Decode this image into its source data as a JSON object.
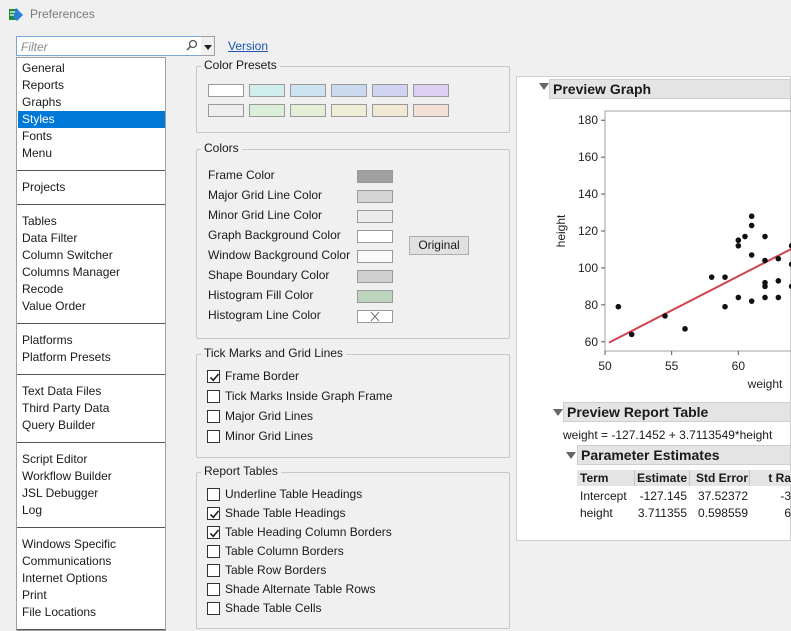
{
  "window": {
    "title": "Preferences"
  },
  "filter": {
    "placeholder": "Filter"
  },
  "version_link": "Version",
  "nav": {
    "groups": [
      [
        "General",
        "Reports",
        "Graphs",
        "Styles",
        "Fonts",
        "Menu"
      ],
      [
        "Projects"
      ],
      [
        "Tables",
        "Data Filter",
        "Column Switcher",
        "Columns Manager",
        "Recode",
        "Value Order"
      ],
      [
        "Platforms",
        "Platform Presets"
      ],
      [
        "Text Data Files",
        "Third Party Data",
        "Query Builder"
      ],
      [
        "Script Editor",
        "Workflow Builder",
        "JSL Debugger",
        "Log"
      ],
      [
        "Windows Specific",
        "Communications",
        "Internet Options",
        "Print",
        "File Locations"
      ]
    ],
    "selected": "Styles"
  },
  "color_presets": {
    "label": "Color Presets",
    "row1": [
      "#ffffff",
      "#cfeeed",
      "#cde3ef",
      "#cdd9ef",
      "#d1d3f2",
      "#dccff2"
    ],
    "row2": [
      "#eeeeee",
      "#dbeed9",
      "#e3efd6",
      "#eeeed6",
      "#f2e8d6",
      "#f2e1d6"
    ]
  },
  "colors": {
    "label": "Colors",
    "items": [
      {
        "label": "Frame Color",
        "color": "#a0a0a0"
      },
      {
        "label": "Major Grid Line Color",
        "color": "#d4d4d4"
      },
      {
        "label": "Minor Grid Line Color",
        "color": "#ececec"
      },
      {
        "label": "Graph Background Color",
        "color": "#ffffff"
      },
      {
        "label": "Window Background Color",
        "color": "#fafafa"
      },
      {
        "label": "Shape Boundary Color",
        "color": "#cfcfcf"
      },
      {
        "label": "Histogram Fill Color",
        "color": "#bdd4be"
      },
      {
        "label": "Histogram Line Color",
        "color": "none"
      }
    ],
    "original_button": "Original"
  },
  "tick_marks": {
    "label": "Tick Marks and Grid Lines",
    "items": [
      {
        "label": "Frame Border",
        "checked": true
      },
      {
        "label": "Tick Marks Inside Graph Frame",
        "checked": false
      },
      {
        "label": "Major Grid Lines",
        "checked": false
      },
      {
        "label": "Minor Grid Lines",
        "checked": false
      }
    ]
  },
  "report_tables": {
    "label": "Report Tables",
    "items": [
      {
        "label": "Underline Table Headings",
        "checked": false
      },
      {
        "label": "Shade Table Headings",
        "checked": true
      },
      {
        "label": "Table Heading Column Borders",
        "checked": true
      },
      {
        "label": "Table Column Borders",
        "checked": false
      },
      {
        "label": "Table Row Borders",
        "checked": false
      },
      {
        "label": "Shade Alternate Table Rows",
        "checked": false
      },
      {
        "label": "Shade Table Cells",
        "checked": false
      }
    ]
  },
  "preview_graph": {
    "title": "Preview Graph",
    "xlabel": "weight",
    "ylabel": "height",
    "x_ticks": [
      "50",
      "55",
      "60"
    ],
    "y_ticks": [
      "180",
      "160",
      "140",
      "120",
      "100",
      "80",
      "60"
    ]
  },
  "chart_data": {
    "type": "scatter",
    "xlabel": "weight",
    "ylabel": "height",
    "xlim": [
      50,
      65
    ],
    "ylim": [
      55,
      185
    ],
    "fit_line": {
      "intercept": -127.1452,
      "slope": 3.7113549
    },
    "points": [
      [
        51,
        79
      ],
      [
        52,
        64
      ],
      [
        54.5,
        74
      ],
      [
        56,
        67
      ],
      [
        58,
        95
      ],
      [
        59,
        79
      ],
      [
        59,
        95
      ],
      [
        60,
        112
      ],
      [
        60,
        115
      ],
      [
        60,
        84
      ],
      [
        60.5,
        117
      ],
      [
        61,
        123
      ],
      [
        61,
        128
      ],
      [
        61,
        107
      ],
      [
        61,
        82
      ],
      [
        62,
        117
      ],
      [
        62,
        104
      ],
      [
        62,
        92
      ],
      [
        62,
        90
      ],
      [
        62,
        84
      ],
      [
        63,
        105
      ],
      [
        63,
        93
      ],
      [
        63,
        84
      ],
      [
        64,
        112
      ],
      [
        64,
        102
      ],
      [
        64,
        90
      ]
    ]
  },
  "preview_report": {
    "title": "Preview Report Table",
    "equation": "weight = -127.1452 + 3.7113549*height",
    "param_title": "Parameter Estimates",
    "headers": [
      "Term",
      "Estimate",
      "Std Error",
      "t Ra"
    ],
    "rows": [
      [
        "Intercept",
        "-127.145",
        "37.52372",
        "-3"
      ],
      [
        "height",
        "3.711355",
        "0.598559",
        "6"
      ]
    ]
  }
}
